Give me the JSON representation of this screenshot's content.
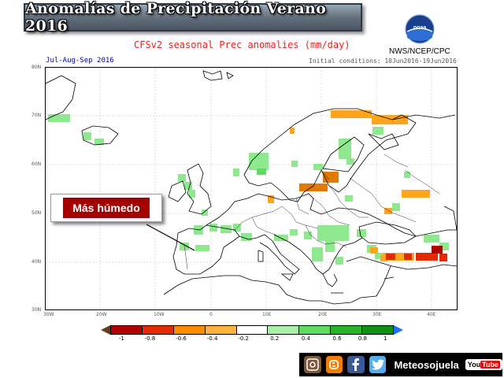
{
  "banner": {
    "title": "Anomalías de Precipitación Verano 2016"
  },
  "header": {
    "subtitle": "CFSv2 seasonal Prec anomalies (mm/day)",
    "source": "NWS/NCEP/CPC",
    "period": "Jul-Aug-Sep 2016",
    "initial_conditions": "Initial conditions: 10Jun2016-19Jun2016",
    "logo_text": "noaa"
  },
  "callout": {
    "label": "Más húmedo"
  },
  "map": {
    "lat_labels": [
      "80N",
      "70N",
      "60N",
      "50N",
      "40N",
      "30N"
    ],
    "lon_labels": [
      "30W",
      "20W",
      "10W",
      "0",
      "10E",
      "20E",
      "30E",
      "40E"
    ]
  },
  "legend": {
    "ticks": [
      "-1",
      "-0.8",
      "-0.6",
      "-0.4",
      "-0.2",
      "0.2",
      "0.4",
      "0.6",
      "0.8",
      "1"
    ],
    "colors": [
      "#b00000",
      "#e22b00",
      "#ff8c00",
      "#ffb23c",
      "#ffffff",
      "#a8f0a8",
      "#5fdc5f",
      "#28b428",
      "#109010"
    ],
    "arrow_left_color": "#6b3a1e",
    "arrow_right_color": "#1e6fff"
  },
  "footer": {
    "brand": "Meteosojuela",
    "youtube_label": "You",
    "youtube_tube": "Tube",
    "icons": [
      "instagram-icon",
      "blogger-icon",
      "facebook-icon",
      "twitter-icon"
    ]
  }
}
